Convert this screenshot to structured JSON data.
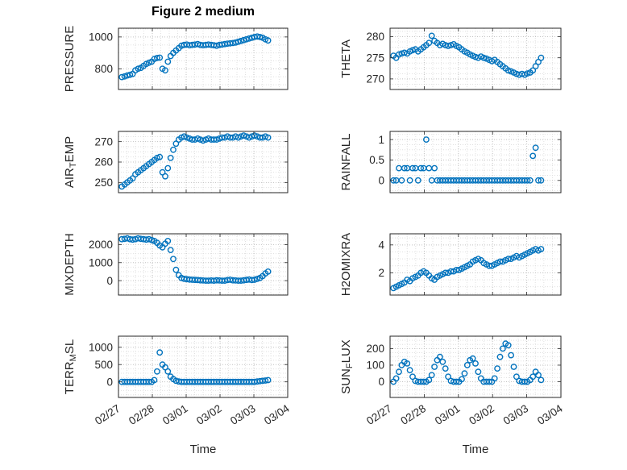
{
  "title": "Figure 2 medium",
  "xlabel": "Time",
  "accent_color": "#0072BD",
  "chart_data": {
    "type": "scatter",
    "layout": "4x2-subplot-grid",
    "title": "Figure 2 medium",
    "xlabel": "Time",
    "marker": "open-circle",
    "marker_color": "#0072BD",
    "grid": "major-and-minor-dotted",
    "legend": "none",
    "xlim": [
      0,
      5
    ],
    "xticks": [
      0,
      1,
      2,
      3,
      4,
      5
    ],
    "x_tick_labels": [
      "02/27",
      "02/28",
      "03/01",
      "03/02",
      "03/03",
      "03/04"
    ],
    "x_days_from_0227": [
      0.1,
      0.18,
      0.26,
      0.34,
      0.42,
      0.5,
      0.58,
      0.66,
      0.74,
      0.82,
      0.9,
      0.98,
      1.06,
      1.14,
      1.22,
      1.3,
      1.38,
      1.46,
      1.54,
      1.62,
      1.7,
      1.78,
      1.86,
      1.94,
      2.02,
      2.1,
      2.18,
      2.26,
      2.34,
      2.42,
      2.5,
      2.58,
      2.66,
      2.74,
      2.82,
      2.9,
      2.98,
      3.06,
      3.14,
      3.22,
      3.3,
      3.38,
      3.46,
      3.54,
      3.62,
      3.7,
      3.78,
      3.86,
      3.94,
      4.02,
      4.1,
      4.18,
      4.26,
      4.34,
      4.42
    ],
    "subplots": [
      {
        "name": "PRESSURE",
        "row": 0,
        "col": 0,
        "ylabel": "PRESSURE",
        "ylabel_parts": [
          {
            "t": "PRESSURE"
          }
        ],
        "ylim": [
          670,
          1055
        ],
        "yticks": [
          800,
          1000
        ],
        "ytick_labels": [
          "800",
          "1000"
        ],
        "y": [
          748,
          752,
          758,
          762,
          768,
          790,
          800,
          806,
          818,
          830,
          838,
          845,
          862,
          868,
          870,
          800,
          790,
          845,
          880,
          900,
          915,
          930,
          945,
          950,
          952,
          948,
          950,
          952,
          955,
          950,
          948,
          950,
          952,
          950,
          948,
          945,
          950,
          952,
          955,
          958,
          960,
          962,
          965,
          970,
          975,
          980,
          985,
          990,
          995,
          1000,
          1003,
          1000,
          995,
          985,
          978
        ]
      },
      {
        "name": "THETA",
        "row": 0,
        "col": 1,
        "ylabel": "THETA",
        "ylabel_parts": [
          {
            "t": "THETA"
          }
        ],
        "ylim": [
          267.5,
          282
        ],
        "yticks": [
          270,
          275,
          280
        ],
        "ytick_labels": [
          "270",
          "275",
          "280"
        ],
        "y": [
          275.5,
          275.0,
          275.8,
          276.0,
          276.2,
          276.0,
          276.5,
          276.8,
          277.0,
          276.5,
          277.0,
          277.5,
          278.0,
          278.5,
          280.2,
          279.0,
          278.5,
          278.0,
          278.3,
          278.0,
          277.8,
          278.0,
          278.2,
          277.8,
          277.5,
          277.0,
          276.5,
          276.2,
          275.8,
          275.5,
          275.2,
          275.0,
          275.3,
          275.0,
          274.8,
          274.5,
          274.2,
          274.5,
          274.0,
          273.5,
          273.0,
          272.5,
          272.0,
          271.8,
          271.5,
          271.2,
          271.0,
          271.2,
          271.0,
          271.3,
          271.5,
          272.0,
          273.0,
          274.0,
          275.0
        ]
      },
      {
        "name": "AIR_TEMP",
        "row": 1,
        "col": 0,
        "ylabel": "AIR_TEMP",
        "ylabel_parts": [
          {
            "t": "AIR"
          },
          {
            "t": "T",
            "sub": true
          },
          {
            "t": "EMP"
          }
        ],
        "ylim": [
          245,
          275
        ],
        "yticks": [
          250,
          260,
          270
        ],
        "ytick_labels": [
          "250",
          "260",
          "270"
        ],
        "y": [
          248,
          249,
          250,
          251,
          252,
          254,
          255,
          256,
          257,
          258,
          259,
          260,
          261,
          262,
          262.5,
          255,
          253,
          257,
          262,
          266,
          269,
          271,
          272,
          272.5,
          272,
          271.5,
          271,
          271,
          271.5,
          271,
          270.5,
          271,
          271.5,
          271,
          271,
          271,
          271.5,
          272,
          272,
          272.5,
          272,
          272,
          272.5,
          272,
          272.5,
          273,
          272.5,
          272,
          272.5,
          273,
          272.5,
          272,
          272,
          272.5,
          272
        ]
      },
      {
        "name": "RAINFALL",
        "row": 1,
        "col": 1,
        "ylabel": "RAINFALL",
        "ylabel_parts": [
          {
            "t": "RAINFALL"
          }
        ],
        "ylim": [
          -0.3,
          1.2
        ],
        "yticks": [
          0,
          0.5,
          1
        ],
        "ytick_labels": [
          "0",
          "0.5",
          "1"
        ],
        "y": [
          0,
          0,
          0.3,
          0,
          0.3,
          0.3,
          0,
          0.3,
          0.3,
          0,
          0.3,
          0.3,
          1.0,
          0.3,
          0,
          0.3,
          0,
          0,
          0,
          0,
          0,
          0,
          0,
          0,
          0,
          0,
          0,
          0,
          0,
          0,
          0,
          0,
          0,
          0,
          0,
          0,
          0,
          0,
          0,
          0,
          0,
          0,
          0,
          0,
          0,
          0,
          0,
          0,
          0,
          0,
          0,
          0.6,
          0.8,
          0,
          0
        ]
      },
      {
        "name": "MIXDEPTH",
        "row": 2,
        "col": 0,
        "ylabel": "MIXDEPTH",
        "ylabel_parts": [
          {
            "t": "MIXDEPTH"
          }
        ],
        "ylim": [
          -800,
          2600
        ],
        "yticks": [
          0,
          1000,
          2000
        ],
        "ytick_labels": [
          "0",
          "1000",
          "2000"
        ],
        "y": [
          2300,
          2320,
          2350,
          2300,
          2280,
          2300,
          2350,
          2320,
          2300,
          2280,
          2300,
          2250,
          2200,
          2100,
          1950,
          1850,
          2050,
          2200,
          1700,
          1200,
          600,
          300,
          150,
          100,
          80,
          60,
          50,
          40,
          30,
          20,
          10,
          0,
          0,
          10,
          0,
          20,
          10,
          0,
          0,
          30,
          50,
          20,
          10,
          0,
          0,
          20,
          40,
          60,
          30,
          50,
          100,
          150,
          250,
          400,
          500
        ]
      },
      {
        "name": "H2OMIXRA",
        "row": 2,
        "col": 1,
        "ylabel": "H2OMIXRA",
        "ylabel_parts": [
          {
            "t": "H2OMIXRA"
          }
        ],
        "ylim": [
          0.4,
          4.8
        ],
        "yticks": [
          2,
          4
        ],
        "ytick_labels": [
          "2",
          "4"
        ],
        "y": [
          0.9,
          1.0,
          1.1,
          1.2,
          1.3,
          1.5,
          1.4,
          1.6,
          1.7,
          1.8,
          2.0,
          2.1,
          2.0,
          1.8,
          1.6,
          1.5,
          1.7,
          1.8,
          1.9,
          2.0,
          2.0,
          2.1,
          2.1,
          2.2,
          2.2,
          2.3,
          2.4,
          2.5,
          2.6,
          2.8,
          2.9,
          3.0,
          2.9,
          2.7,
          2.6,
          2.5,
          2.5,
          2.6,
          2.7,
          2.8,
          2.8,
          2.9,
          3.0,
          3.0,
          3.1,
          3.2,
          3.1,
          3.2,
          3.3,
          3.4,
          3.5,
          3.6,
          3.7,
          3.6,
          3.7
        ]
      },
      {
        "name": "TERR_MSL",
        "row": 3,
        "col": 0,
        "ylabel": "TERR_MSL",
        "ylabel_parts": [
          {
            "t": "TERR"
          },
          {
            "t": "M",
            "sub": true
          },
          {
            "t": "SL"
          }
        ],
        "ylim": [
          -450,
          1320
        ],
        "yticks": [
          0,
          500,
          1000
        ],
        "ytick_labels": [
          "0",
          "500",
          "1000"
        ],
        "y": [
          0,
          0,
          0,
          0,
          0,
          0,
          0,
          0,
          0,
          0,
          0,
          0,
          50,
          300,
          850,
          500,
          420,
          300,
          150,
          80,
          30,
          10,
          0,
          0,
          0,
          0,
          0,
          0,
          0,
          0,
          0,
          0,
          0,
          0,
          0,
          0,
          0,
          0,
          0,
          0,
          0,
          0,
          0,
          0,
          0,
          0,
          0,
          0,
          0,
          0,
          10,
          20,
          30,
          40,
          50
        ]
      },
      {
        "name": "SUN_FLUX",
        "row": 3,
        "col": 1,
        "ylabel": "SUN_FLUX",
        "ylabel_parts": [
          {
            "t": "SUN"
          },
          {
            "t": "F",
            "sub": true
          },
          {
            "t": "LUX"
          }
        ],
        "ylim": [
          -95,
          275
        ],
        "yticks": [
          0,
          100,
          200
        ],
        "ytick_labels": [
          "0",
          "100",
          "200"
        ],
        "y": [
          0,
          20,
          60,
          100,
          120,
          110,
          70,
          30,
          5,
          0,
          0,
          0,
          0,
          10,
          40,
          90,
          130,
          150,
          120,
          80,
          30,
          5,
          0,
          0,
          0,
          15,
          50,
          100,
          130,
          140,
          110,
          60,
          20,
          0,
          0,
          0,
          0,
          20,
          80,
          150,
          200,
          230,
          220,
          160,
          90,
          30,
          5,
          0,
          0,
          0,
          10,
          30,
          60,
          40,
          10
        ]
      }
    ]
  }
}
